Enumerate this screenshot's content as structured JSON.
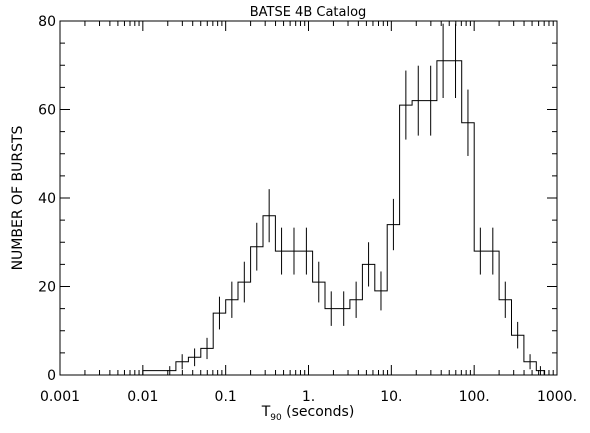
{
  "chart_data": {
    "type": "histogram",
    "title": "BATSE 4B Catalog",
    "xlabel": "T",
    "xlabel_subscript": "90",
    "xlabel_rest": " (seconds)",
    "ylabel": "NUMBER OF BURSTS",
    "x_scale": "log",
    "xlim": [
      0.001,
      1000
    ],
    "ylim": [
      0,
      80
    ],
    "grid": false,
    "x_ticks": [
      {
        "value": 0.001,
        "label": "0.001"
      },
      {
        "value": 0.01,
        "label": "0.01"
      },
      {
        "value": 0.1,
        "label": "0.1"
      },
      {
        "value": 1,
        "label": "1."
      },
      {
        "value": 10,
        "label": "10."
      },
      {
        "value": 100,
        "label": "100."
      },
      {
        "value": 1000,
        "label": "1000."
      }
    ],
    "y_ticks": [
      {
        "value": 0,
        "label": "0"
      },
      {
        "value": 20,
        "label": "20"
      },
      {
        "value": 40,
        "label": "40"
      },
      {
        "value": 60,
        "label": "60"
      },
      {
        "value": 80,
        "label": "80"
      }
    ],
    "bins": [
      {
        "lo": 0.01,
        "hi": 0.0178,
        "count": 1,
        "err": 0
      },
      {
        "lo": 0.0178,
        "hi": 0.0251,
        "count": 1,
        "err": 1
      },
      {
        "lo": 0.0251,
        "hi": 0.0355,
        "count": 3,
        "err": 1.7
      },
      {
        "lo": 0.0355,
        "hi": 0.0501,
        "count": 4,
        "err": 2
      },
      {
        "lo": 0.0501,
        "hi": 0.0708,
        "count": 6,
        "err": 2.4
      },
      {
        "lo": 0.0708,
        "hi": 0.1,
        "count": 14,
        "err": 3.7
      },
      {
        "lo": 0.1,
        "hi": 0.141,
        "count": 17,
        "err": 4.1
      },
      {
        "lo": 0.141,
        "hi": 0.2,
        "count": 21,
        "err": 4.6
      },
      {
        "lo": 0.2,
        "hi": 0.282,
        "count": 29,
        "err": 5.4
      },
      {
        "lo": 0.282,
        "hi": 0.398,
        "count": 36,
        "err": 6
      },
      {
        "lo": 0.398,
        "hi": 0.562,
        "count": 28,
        "err": 5.3
      },
      {
        "lo": 0.562,
        "hi": 0.794,
        "count": 28,
        "err": 5.3
      },
      {
        "lo": 0.794,
        "hi": 1.12,
        "count": 28,
        "err": 5.3
      },
      {
        "lo": 1.12,
        "hi": 1.58,
        "count": 21,
        "err": 4.6
      },
      {
        "lo": 1.58,
        "hi": 2.24,
        "count": 15,
        "err": 3.9
      },
      {
        "lo": 2.24,
        "hi": 3.16,
        "count": 15,
        "err": 3.9
      },
      {
        "lo": 3.16,
        "hi": 4.47,
        "count": 17,
        "err": 4.1
      },
      {
        "lo": 4.47,
        "hi": 6.31,
        "count": 25,
        "err": 5
      },
      {
        "lo": 6.31,
        "hi": 8.91,
        "count": 19,
        "err": 4.4
      },
      {
        "lo": 8.91,
        "hi": 12.6,
        "count": 34,
        "err": 5.8
      },
      {
        "lo": 12.6,
        "hi": 17.8,
        "count": 61,
        "err": 7.8
      },
      {
        "lo": 17.8,
        "hi": 25.1,
        "count": 62,
        "err": 7.9
      },
      {
        "lo": 25.1,
        "hi": 35.5,
        "count": 62,
        "err": 7.9
      },
      {
        "lo": 35.5,
        "hi": 50.1,
        "count": 71,
        "err": 8.4
      },
      {
        "lo": 50.1,
        "hi": 70.8,
        "count": 71,
        "err": 8.4
      },
      {
        "lo": 70.8,
        "hi": 100,
        "count": 57,
        "err": 7.5
      },
      {
        "lo": 100,
        "hi": 141,
        "count": 28,
        "err": 5.3
      },
      {
        "lo": 141,
        "hi": 200,
        "count": 28,
        "err": 5.3
      },
      {
        "lo": 200,
        "hi": 282,
        "count": 17,
        "err": 4.1
      },
      {
        "lo": 282,
        "hi": 398,
        "count": 9,
        "err": 3
      },
      {
        "lo": 398,
        "hi": 562,
        "count": 3,
        "err": 1.7
      },
      {
        "lo": 562,
        "hi": 708,
        "count": 1,
        "err": 1
      }
    ]
  }
}
